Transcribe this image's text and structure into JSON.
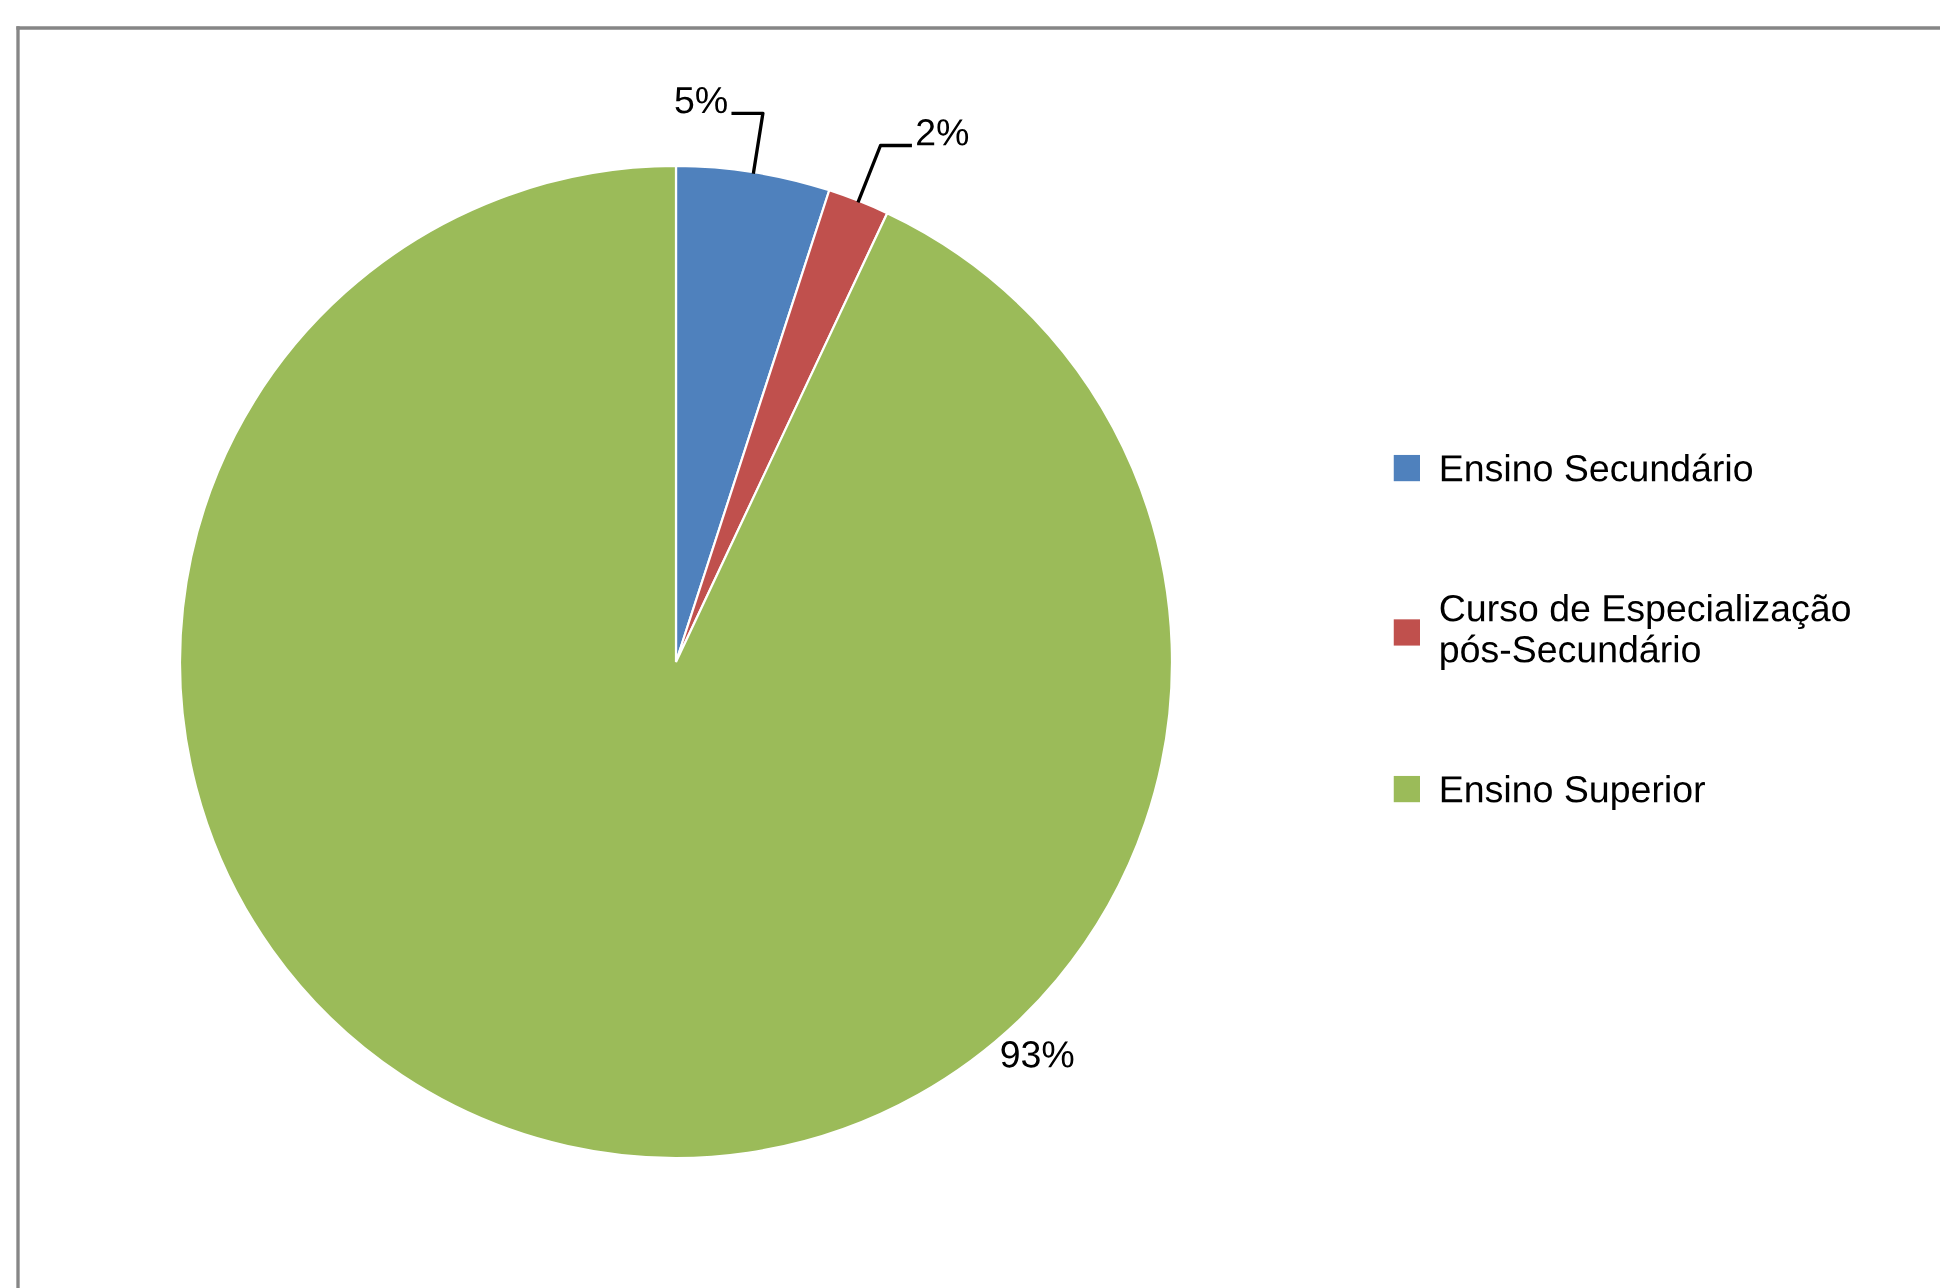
{
  "chart_data": {
    "type": "pie",
    "categories": [
      "Ensino Secundário",
      "Curso de Especialização pós-Secundário",
      "Ensino Superior"
    ],
    "values": [
      5,
      2,
      93
    ],
    "colors": [
      "#4f81bd",
      "#c0504d",
      "#9bbb59"
    ],
    "value_labels": [
      "5%",
      "2%",
      "93%"
    ],
    "legend": "right"
  }
}
